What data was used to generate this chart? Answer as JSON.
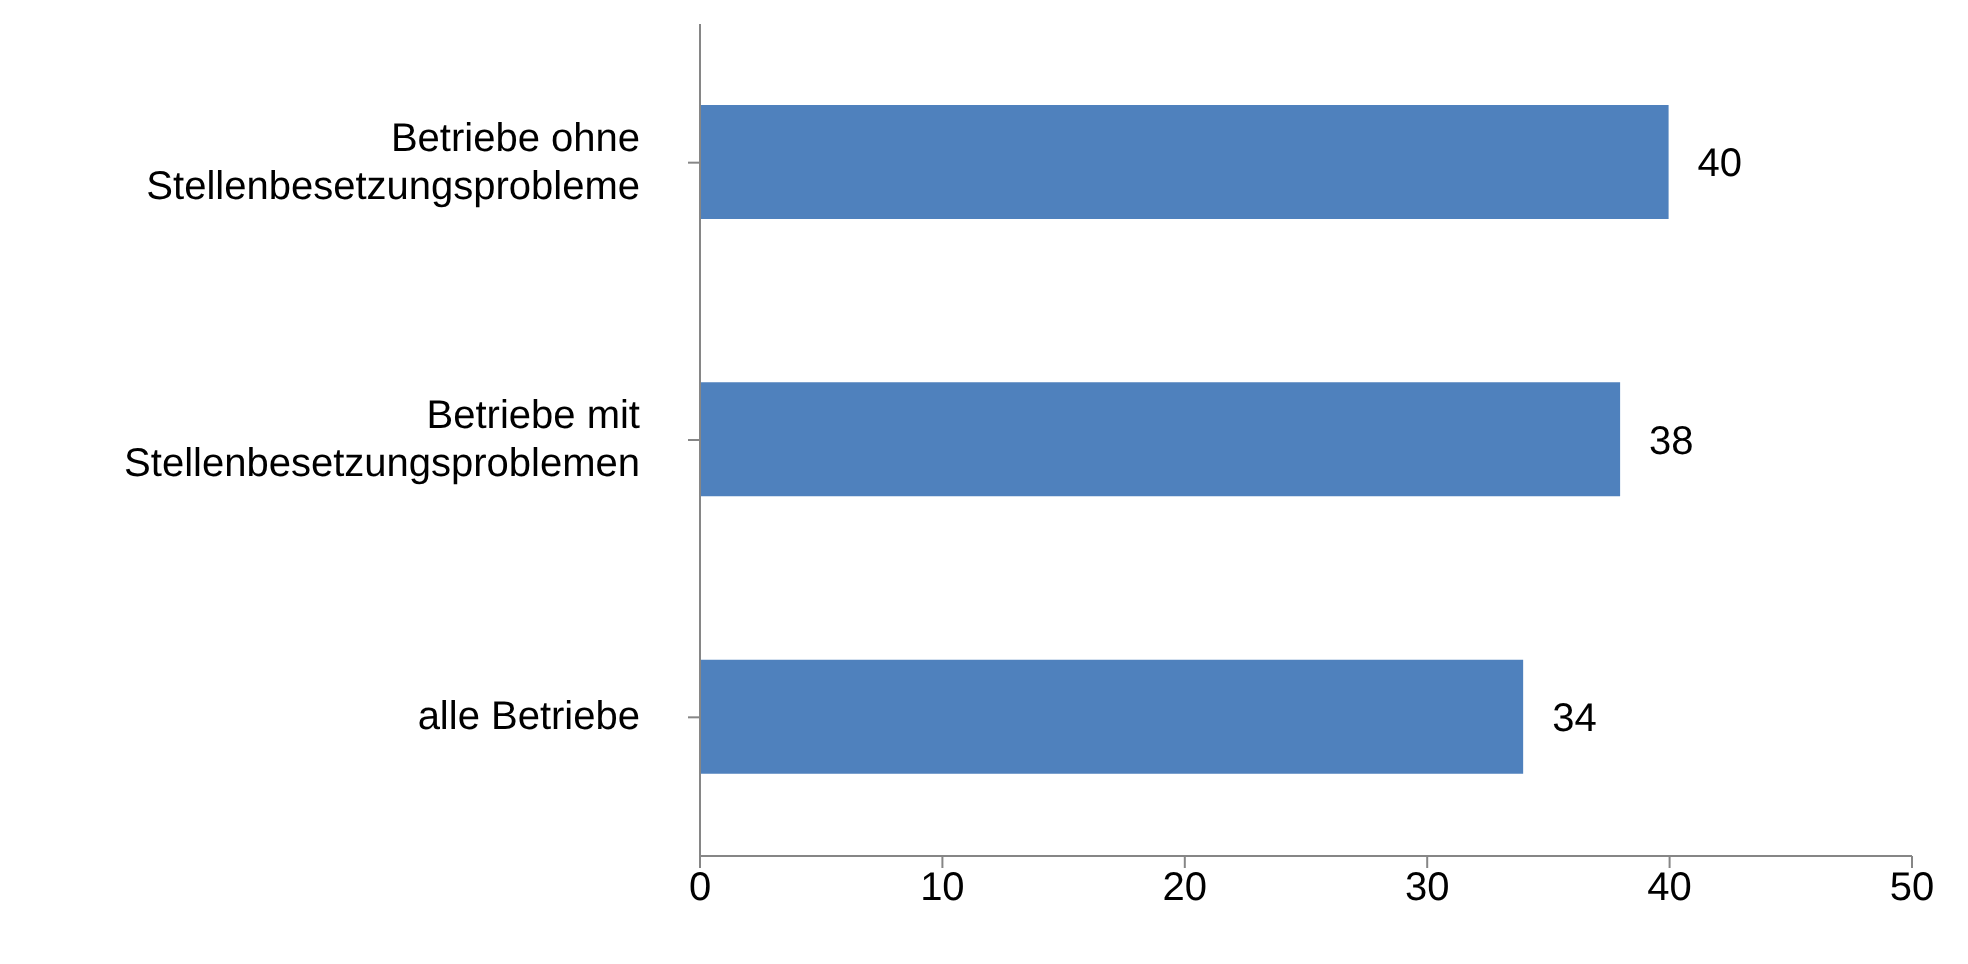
{
  "chart_data": {
    "type": "bar",
    "orientation": "horizontal",
    "categories": [
      "Betriebe ohne Stellenbesetzungsprobleme",
      "Betriebe mit Stellenbesetzungsproblemen",
      "alle Betriebe"
    ],
    "values": [
      40,
      38,
      34
    ],
    "color": "#4f81bd",
    "xlim": [
      0,
      50
    ],
    "xticks": [
      0,
      10,
      20,
      30,
      40,
      50
    ],
    "data_labels": true
  }
}
